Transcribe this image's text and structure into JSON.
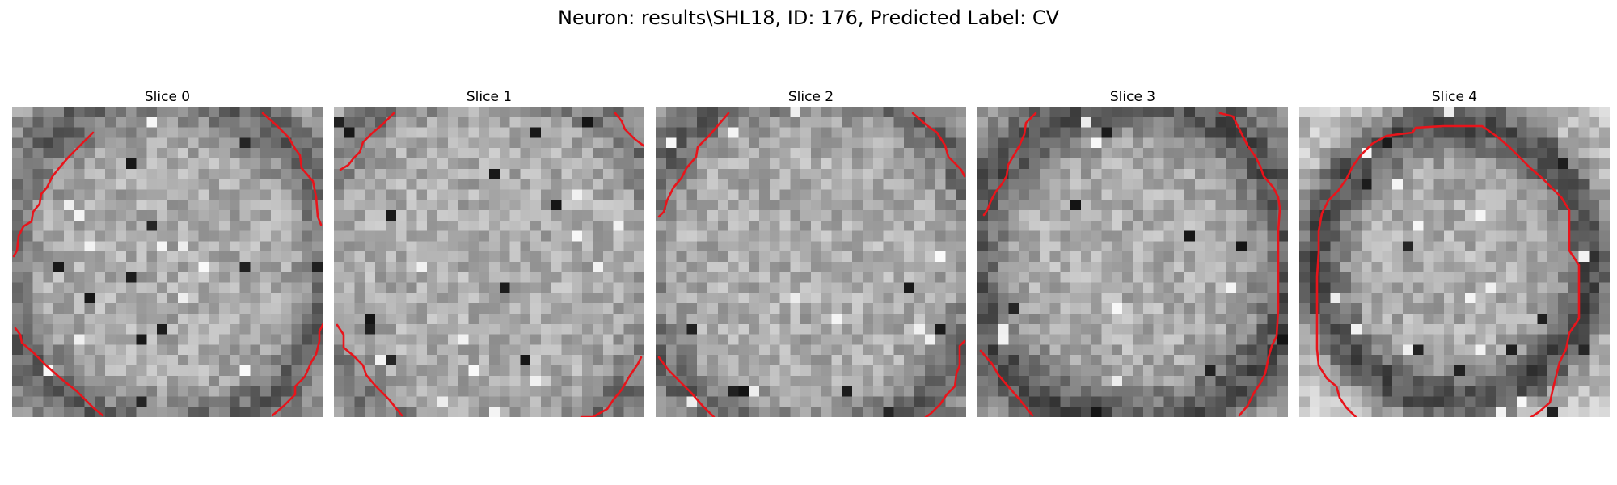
{
  "figure": {
    "title": "Neuron: results\\SHL18, ID: 176, Predicted Label: CV"
  },
  "colors": {
    "contour": "#e8141b",
    "background": "#ffffff"
  },
  "slices": [
    {
      "label": "Slice 0"
    },
    {
      "label": "Slice 1"
    },
    {
      "label": "Slice 2"
    },
    {
      "label": "Slice 3"
    },
    {
      "label": "Slice 4"
    }
  ]
}
